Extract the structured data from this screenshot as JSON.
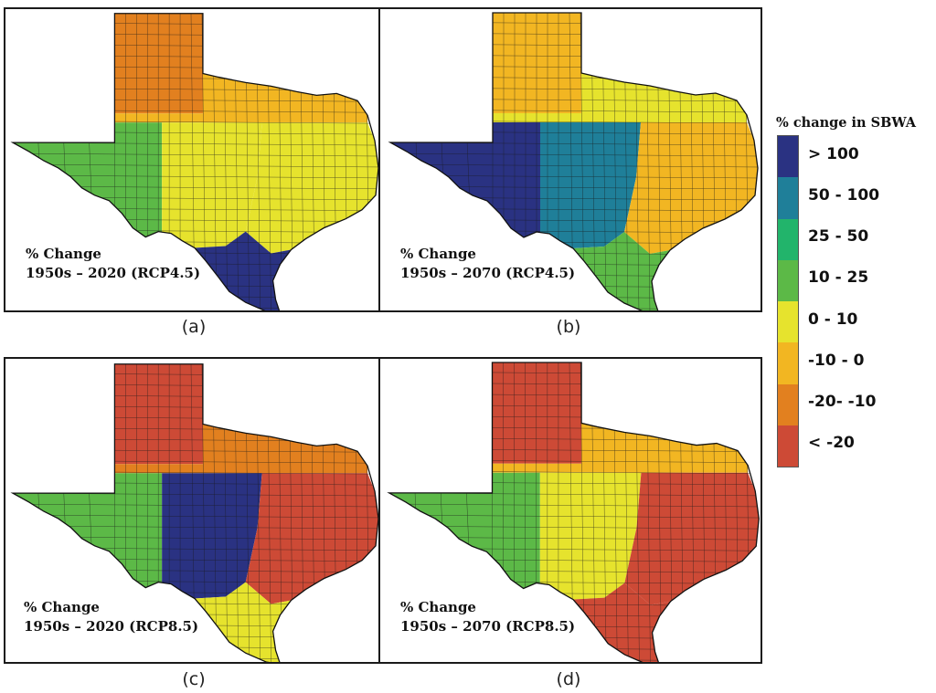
{
  "legend": {
    "title": "% change in SBWA",
    "classes": [
      {
        "label": "> 100",
        "color": "#2a3282"
      },
      {
        "label": "50 - 100",
        "color": "#1f7f99"
      },
      {
        "label": "25 - 50",
        "color": "#22b46b"
      },
      {
        "label": "10 - 25",
        "color": "#5cb947"
      },
      {
        "label": "0 - 10",
        "color": "#e6e32d"
      },
      {
        "label": "-10 - 0",
        "color": "#f2b622"
      },
      {
        "label": "-20- -10",
        "color": "#e2801f"
      },
      {
        "label": "< -20",
        "color": "#cd4a36"
      }
    ]
  },
  "panels": [
    {
      "id": "a",
      "caption": "(a)",
      "text_line1": "% Change",
      "text_line2": "1950s – 2020 (RCP4.5)",
      "regions": {
        "panhandle": 6,
        "north": 5,
        "west": 3,
        "central": 4,
        "east": 4,
        "south": 0
      }
    },
    {
      "id": "b",
      "caption": "(b)",
      "text_line1": "% Change",
      "text_line2": "1950s – 2070 (RCP4.5)",
      "regions": {
        "panhandle": 5,
        "north": 4,
        "west": 0,
        "central": 1,
        "east": 5,
        "south": 3
      }
    },
    {
      "id": "c",
      "caption": "(c)",
      "text_line1": "% Change",
      "text_line2": "1950s – 2020 (RCP8.5)",
      "regions": {
        "panhandle": 7,
        "north": 6,
        "west": 3,
        "central": 0,
        "east": 7,
        "south": 4
      }
    },
    {
      "id": "d",
      "caption": "(d)",
      "text_line1": "% Change",
      "text_line2": "1950s – 2070 (RCP8.5)",
      "regions": {
        "panhandle": 7,
        "north": 5,
        "west": 3,
        "central": 4,
        "east": 7,
        "south": 7
      }
    }
  ]
}
